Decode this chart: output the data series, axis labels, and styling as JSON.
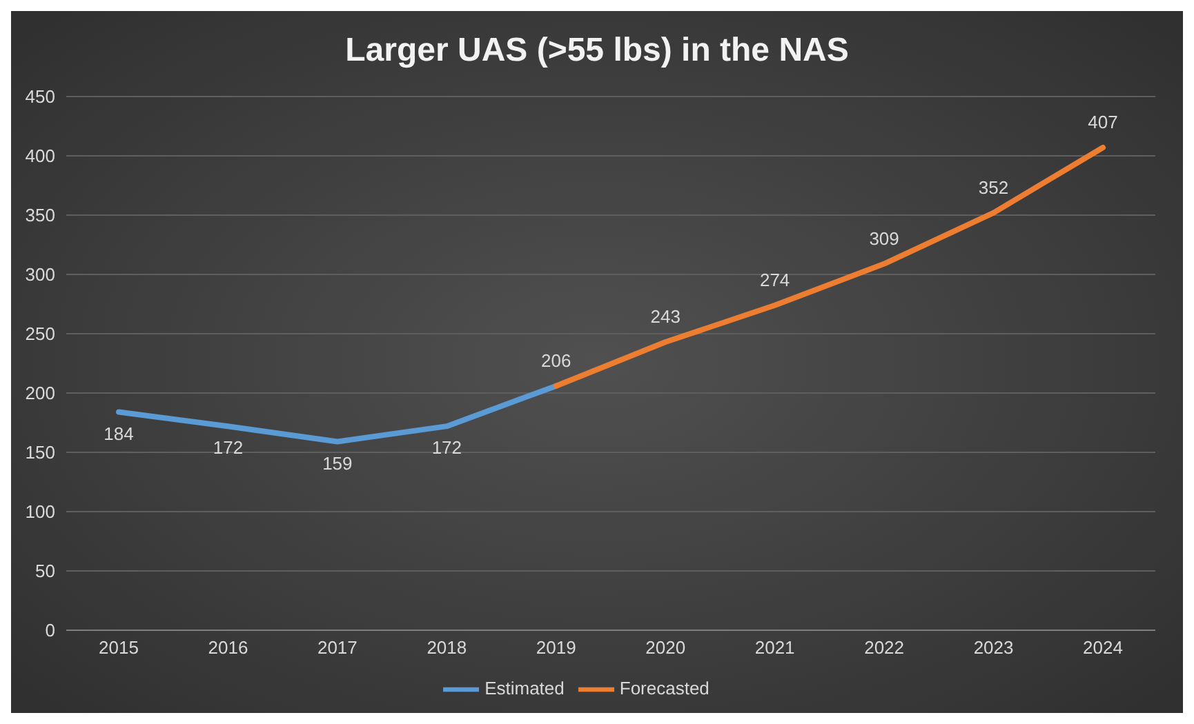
{
  "chart_data": {
    "type": "line",
    "title": "Larger UAS (>55 lbs) in the NAS",
    "categories": [
      "2015",
      "2016",
      "2017",
      "2018",
      "2019",
      "2020",
      "2021",
      "2022",
      "2023",
      "2024"
    ],
    "series": [
      {
        "name": "Estimated",
        "color": "#5b9bd5",
        "values": [
          184,
          172,
          159,
          172,
          206,
          null,
          null,
          null,
          null,
          null
        ],
        "value_labels": [
          "184",
          "172",
          "159",
          "172",
          null,
          null,
          null,
          null,
          null,
          null
        ]
      },
      {
        "name": "Forecasted",
        "color": "#ed7d31",
        "values": [
          null,
          null,
          null,
          null,
          206,
          243,
          274,
          309,
          352,
          407
        ],
        "value_labels": [
          null,
          null,
          null,
          null,
          "206",
          "243",
          "274",
          "309",
          "352",
          "407"
        ]
      }
    ],
    "ylim": [
      0,
      450
    ],
    "yticks": [
      0,
      50,
      100,
      150,
      200,
      250,
      300,
      350,
      400,
      450
    ],
    "grid": "y",
    "legend": "bottom",
    "marker": "none",
    "line_style": "solid"
  }
}
